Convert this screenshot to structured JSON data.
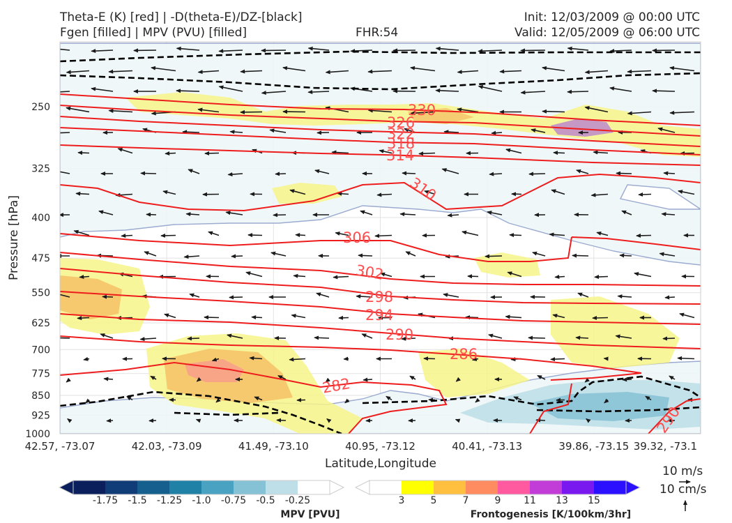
{
  "header": {
    "title_line1": "Theta-E (K) [red] | -D(theta-E)/DZ-[black]",
    "title_line2": "Fgen [filled] | MPV (PVU) [filled]",
    "fhr": "FHR:54",
    "init": "Init: 12/03/2009 @ 00:00 UTC",
    "valid": "Valid: 12/05/2009 @ 06:00 UTC"
  },
  "chart_data": {
    "type": "contour",
    "title": "Theta-E (K) [red] | -D(theta-E)/DZ-[black]",
    "xlabel": "Latitude,Longitude",
    "ylabel": "Pressure [hPa]",
    "x_ticks": [
      "42.57, -73.07",
      "42.03, -73.09",
      "41.49, -73.10",
      "40.95, -73.12",
      "40.41, -73.13",
      "39.86, -73.15",
      "39.32, -73.1"
    ],
    "y_ticks": [
      250,
      325,
      400,
      475,
      550,
      625,
      700,
      775,
      850,
      925,
      1000
    ],
    "ylim": [
      1000,
      190
    ],
    "y_scale": "log",
    "grid": true,
    "theta_e_contours": [
      {
        "value": 330,
        "label": "330"
      },
      {
        "value": 326,
        "label": "326"
      },
      {
        "value": 322,
        "label": "322"
      },
      {
        "value": 318,
        "label": "318"
      },
      {
        "value": 314,
        "label": "314"
      },
      {
        "value": 310,
        "label": "310"
      },
      {
        "value": 306,
        "label": "306"
      },
      {
        "value": 302,
        "label": "302"
      },
      {
        "value": 298,
        "label": "298"
      },
      {
        "value": 294,
        "label": "294"
      },
      {
        "value": 290,
        "label": "290"
      },
      {
        "value": 286,
        "label": "286"
      },
      {
        "value": 282,
        "label": "282"
      },
      {
        "value": 290,
        "label": "290"
      }
    ],
    "mpv_colorbar": {
      "label": "MPV [PVU]",
      "ticks": [
        "-1.75",
        "-1.5",
        "-1.25",
        "-1.0",
        "-0.75",
        "-0.5",
        "-0.25"
      ],
      "colors": [
        "#0a1f5c",
        "#103d78",
        "#155f8e",
        "#1f81a6",
        "#4aa2c2",
        "#86c2d6",
        "#bfdfe8",
        "#ffffff"
      ]
    },
    "fgen_colorbar": {
      "label": "Frontogenesis [K/100km/3hr]",
      "ticks": [
        "3",
        "5",
        "7",
        "9",
        "11",
        "13",
        "15"
      ],
      "colors": [
        "#ffffff",
        "#ffff00",
        "#ffc040",
        "#ff8c60",
        "#ff5aa0",
        "#c23cd8",
        "#7a18f0",
        "#2b10ff"
      ]
    },
    "wind_reference": {
      "horizontal": "10 m/s",
      "vertical": "10 cm/s"
    }
  }
}
